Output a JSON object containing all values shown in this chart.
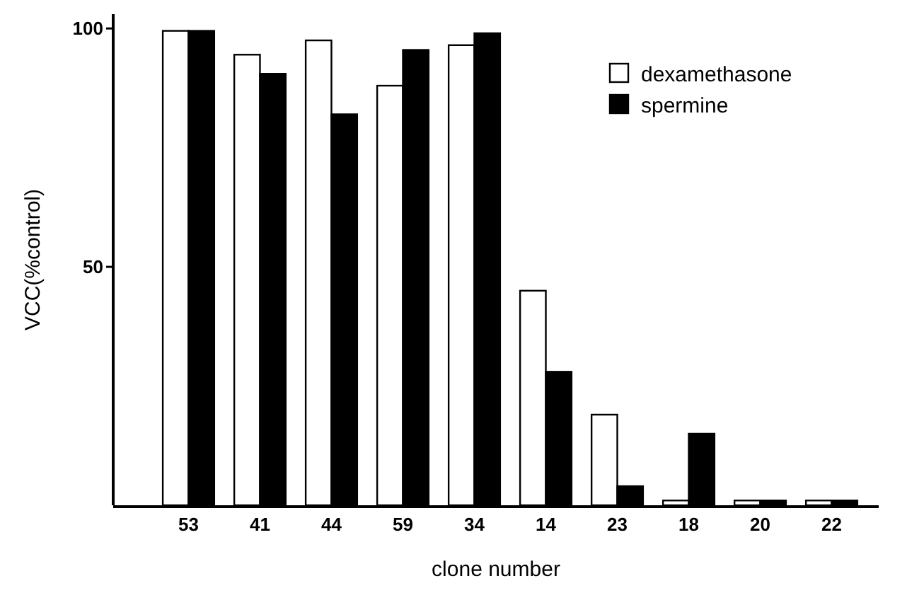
{
  "chart_data": {
    "type": "bar",
    "xlabel": "clone number",
    "ylabel": "VCC(%control)",
    "categories": [
      "53",
      "41",
      "44",
      "59",
      "34",
      "14",
      "23",
      "18",
      "20",
      "22"
    ],
    "series": [
      {
        "name": "dexamethasone",
        "color": "#ffffff",
        "values": [
          99.5,
          94.5,
          97.5,
          88,
          96.5,
          45,
          19,
          1,
          1,
          1
        ]
      },
      {
        "name": "spermine",
        "color": "#000000",
        "values": [
          99.5,
          90.5,
          82,
          95.5,
          99,
          28,
          4,
          15,
          1,
          1
        ]
      }
    ],
    "ylim": [
      0,
      103
    ],
    "yticks": [
      50,
      100
    ],
    "legend": "top right"
  }
}
